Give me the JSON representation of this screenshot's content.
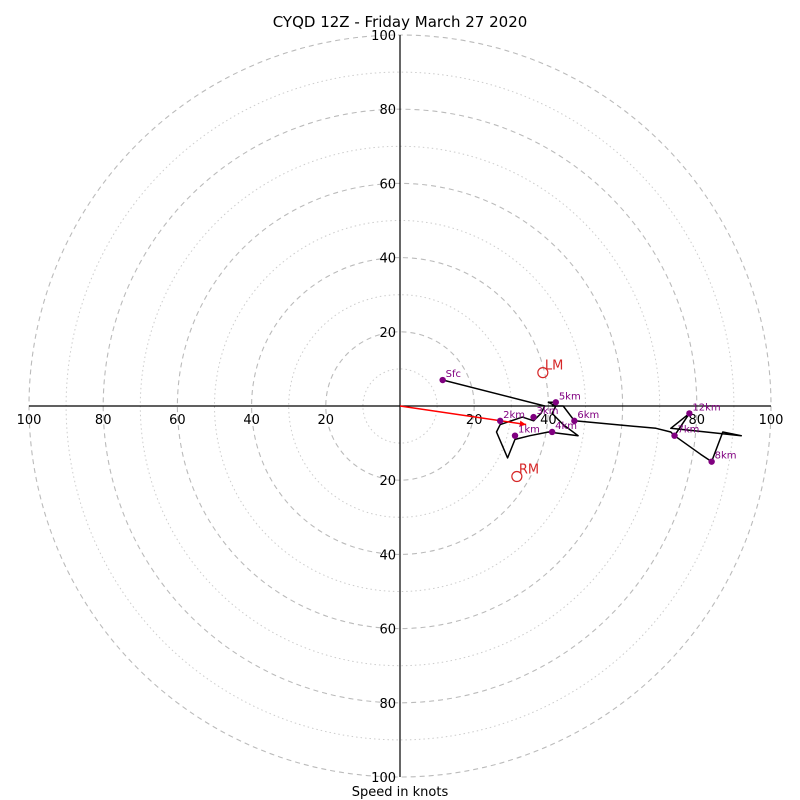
{
  "chart_data": {
    "type": "hodograph",
    "title": "CYQD 12Z - Friday March 27 2020",
    "xlabel": "Speed in knots",
    "ylabel": "",
    "xlim": [
      -100,
      100
    ],
    "ylim": [
      -100,
      100
    ],
    "ticks": [
      20,
      40,
      60,
      80,
      100
    ],
    "tick_labels": {
      "x_neg": [
        "100",
        "80",
        "60",
        "40",
        "20"
      ],
      "x_pos": [
        "20",
        "40",
        "80",
        "100"
      ],
      "y_pos": [
        "20",
        "40",
        "60",
        "80",
        "100"
      ],
      "y_neg": [
        "20",
        "40",
        "60",
        "80",
        "100"
      ]
    },
    "rings_major": [
      20,
      40,
      60,
      80,
      100
    ],
    "rings_minor": [
      10,
      30,
      50,
      70,
      90
    ],
    "grid": true,
    "trace": [
      [
        11.5,
        7
      ],
      [
        39,
        0
      ],
      [
        38,
        -2
      ],
      [
        36,
        -4
      ],
      [
        33,
        -3
      ],
      [
        27,
        -5
      ],
      [
        26,
        -7
      ],
      [
        29,
        -14
      ],
      [
        31,
        -9
      ],
      [
        35,
        -8
      ],
      [
        40,
        -7
      ],
      [
        48,
        -8
      ],
      [
        44,
        -5
      ],
      [
        41,
        -2
      ],
      [
        42,
        0
      ],
      [
        40,
        1
      ],
      [
        42,
        1
      ],
      [
        41,
        0
      ],
      [
        44,
        0
      ],
      [
        47,
        -4
      ],
      [
        69,
        -6
      ],
      [
        73,
        -7
      ],
      [
        74,
        -8
      ],
      [
        78,
        -2
      ],
      [
        73,
        -6
      ],
      [
        92,
        -8
      ],
      [
        87,
        -7
      ],
      [
        84,
        -15
      ],
      [
        81,
        -13
      ],
      [
        74,
        -8
      ],
      [
        78,
        -2
      ]
    ],
    "height_markers": [
      {
        "label": "Sfc",
        "u": 11.5,
        "v": 7
      },
      {
        "label": "1km",
        "u": 31,
        "v": -8
      },
      {
        "label": "2km",
        "u": 27,
        "v": -4
      },
      {
        "label": "3km",
        "u": 36,
        "v": -3
      },
      {
        "label": "4km",
        "u": 41,
        "v": -7
      },
      {
        "label": "5km",
        "u": 42,
        "v": 1
      },
      {
        "label": "6km",
        "u": 47,
        "v": -4
      },
      {
        "label": "7km",
        "u": 74,
        "v": -8
      },
      {
        "label": "8km",
        "u": 84,
        "v": -15
      },
      {
        "label": "12km",
        "u": 78,
        "v": -2
      }
    ],
    "mean_wind_vector": {
      "u": 34,
      "v": -5
    },
    "storm_motion": [
      {
        "label": "LM",
        "u": 38.5,
        "v": 9
      },
      {
        "label": "RM",
        "u": 31.5,
        "v": -19
      }
    ],
    "colors": {
      "trace": "#000000",
      "marker": "#800080",
      "vector": "#ff0000",
      "storm_motion": "#d62728",
      "grid": "#bbbbbb"
    }
  }
}
